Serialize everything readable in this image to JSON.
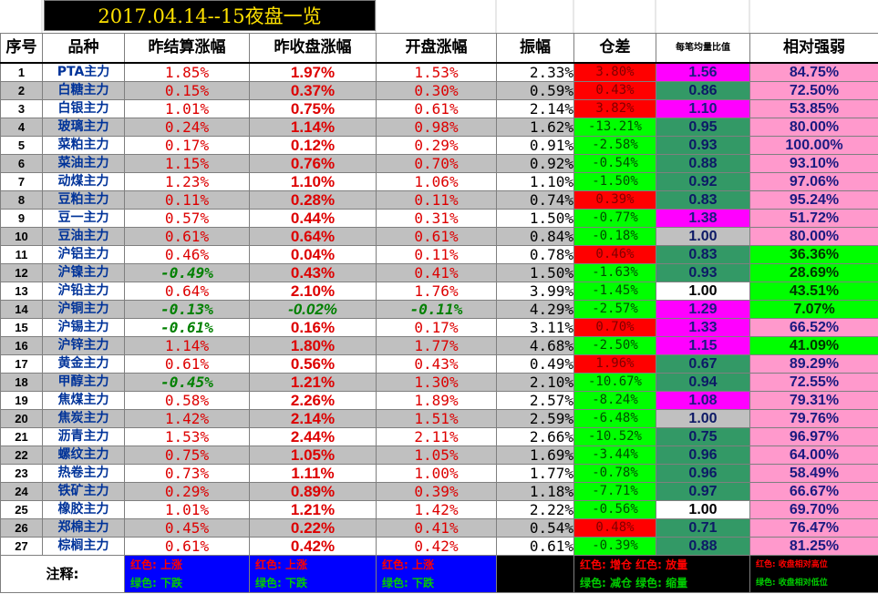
{
  "title": "2017.04.14--15夜盘一览",
  "headers": {
    "idx": "序号",
    "name": "品种",
    "settle_chg": "昨结算涨幅",
    "close_chg": "昨收盘涨幅",
    "open_chg": "开盘涨幅",
    "amplitude": "振幅",
    "oi_diff": "仓差",
    "avg_ratio": "每笔均量比值",
    "strength": "相对强弱"
  },
  "rows": [
    {
      "idx": "1",
      "name": "PTA主力",
      "settle": "1.85%",
      "close": "1.97%",
      "open": "1.53%",
      "amp": "2.33%",
      "diff": "3.80%",
      "diff_color": "red",
      "avg": "1.56",
      "avg_color": "mag",
      "str": "84.75%",
      "str_color": "pink"
    },
    {
      "idx": "2",
      "name": "白糖主力",
      "settle": "0.15%",
      "close": "0.37%",
      "open": "0.30%",
      "amp": "0.59%",
      "diff": "0.43%",
      "diff_color": "red",
      "avg": "0.86",
      "avg_color": "teal",
      "str": "72.50%",
      "str_color": "pink"
    },
    {
      "idx": "3",
      "name": "白银主力",
      "settle": "1.01%",
      "close": "0.75%",
      "open": "0.61%",
      "amp": "2.14%",
      "diff": "3.82%",
      "diff_color": "red",
      "avg": "1.10",
      "avg_color": "mag",
      "str": "53.85%",
      "str_color": "pink"
    },
    {
      "idx": "4",
      "name": "玻璃主力",
      "settle": "0.24%",
      "close": "1.14%",
      "open": "0.98%",
      "amp": "1.62%",
      "diff": "-13.21%",
      "diff_color": "grn",
      "avg": "0.95",
      "avg_color": "teal",
      "str": "80.00%",
      "str_color": "pink"
    },
    {
      "idx": "5",
      "name": "菜粕主力",
      "settle": "0.17%",
      "close": "0.12%",
      "open": "0.29%",
      "amp": "0.91%",
      "diff": "-2.58%",
      "diff_color": "grn",
      "avg": "0.93",
      "avg_color": "teal",
      "str": "100.00%",
      "str_color": "pink"
    },
    {
      "idx": "6",
      "name": "菜油主力",
      "settle": "1.15%",
      "close": "0.76%",
      "open": "0.70%",
      "amp": "0.92%",
      "diff": "-0.54%",
      "diff_color": "grn",
      "avg": "0.88",
      "avg_color": "teal",
      "str": "93.10%",
      "str_color": "pink"
    },
    {
      "idx": "7",
      "name": "动煤主力",
      "settle": "1.23%",
      "close": "1.10%",
      "open": "1.06%",
      "amp": "1.10%",
      "diff": "-1.50%",
      "diff_color": "grn",
      "avg": "0.92",
      "avg_color": "teal",
      "str": "97.06%",
      "str_color": "pink"
    },
    {
      "idx": "8",
      "name": "豆粕主力",
      "settle": "0.11%",
      "close": "0.28%",
      "open": "0.11%",
      "amp": "0.74%",
      "diff": "0.39%",
      "diff_color": "red",
      "avg": "0.83",
      "avg_color": "teal",
      "str": "95.24%",
      "str_color": "pink"
    },
    {
      "idx": "9",
      "name": "豆一主力",
      "settle": "0.57%",
      "close": "0.44%",
      "open": "0.31%",
      "amp": "1.50%",
      "diff": "-0.77%",
      "diff_color": "grn",
      "avg": "1.38",
      "avg_color": "mag",
      "str": "51.72%",
      "str_color": "pink"
    },
    {
      "idx": "10",
      "name": "豆油主力",
      "settle": "0.61%",
      "close": "0.64%",
      "open": "0.61%",
      "amp": "0.84%",
      "diff": "-0.18%",
      "diff_color": "grn",
      "avg": "1.00",
      "avg_color": "gray",
      "str": "80.00%",
      "str_color": "pink"
    },
    {
      "idx": "11",
      "name": "沪铝主力",
      "settle": "0.46%",
      "close": "0.04%",
      "open": "0.11%",
      "amp": "0.78%",
      "diff": "0.46%",
      "diff_color": "red",
      "avg": "0.83",
      "avg_color": "teal",
      "str": "36.36%",
      "str_color": "lime"
    },
    {
      "idx": "12",
      "name": "沪镍主力",
      "settle": "-0.49%",
      "close": "0.43%",
      "open": "0.41%",
      "amp": "1.50%",
      "diff": "-1.63%",
      "diff_color": "grn",
      "avg": "0.93",
      "avg_color": "teal",
      "str": "28.69%",
      "str_color": "lime"
    },
    {
      "idx": "13",
      "name": "沪铅主力",
      "settle": "0.64%",
      "close": "2.10%",
      "open": "1.76%",
      "amp": "3.99%",
      "diff": "-1.45%",
      "diff_color": "grn",
      "avg": "1.00",
      "avg_color": "white",
      "str": "43.51%",
      "str_color": "lime"
    },
    {
      "idx": "14",
      "name": "沪铜主力",
      "settle": "-0.13%",
      "close": "-0.02%",
      "open": "-0.11%",
      "amp": "4.29%",
      "diff": "-2.57%",
      "diff_color": "grn",
      "avg": "1.29",
      "avg_color": "mag",
      "str": "7.07%",
      "str_color": "lime"
    },
    {
      "idx": "15",
      "name": "沪锡主力",
      "settle": "-0.61%",
      "close": "0.16%",
      "open": "0.17%",
      "amp": "3.11%",
      "diff": "0.70%",
      "diff_color": "red",
      "avg": "1.33",
      "avg_color": "mag",
      "str": "66.52%",
      "str_color": "pink"
    },
    {
      "idx": "16",
      "name": "沪锌主力",
      "settle": "1.14%",
      "close": "1.80%",
      "open": "1.77%",
      "amp": "4.68%",
      "diff": "-2.50%",
      "diff_color": "grn",
      "avg": "1.15",
      "avg_color": "mag",
      "str": "41.09%",
      "str_color": "lime"
    },
    {
      "idx": "17",
      "name": "黄金主力",
      "settle": "0.61%",
      "close": "0.56%",
      "open": "0.43%",
      "amp": "0.49%",
      "diff": "1.96%",
      "diff_color": "red",
      "avg": "0.67",
      "avg_color": "teal",
      "str": "89.29%",
      "str_color": "pink"
    },
    {
      "idx": "18",
      "name": "甲醇主力",
      "settle": "-0.45%",
      "close": "1.21%",
      "open": "1.30%",
      "amp": "2.10%",
      "diff": "-10.67%",
      "diff_color": "grn",
      "avg": "0.94",
      "avg_color": "teal",
      "str": "72.55%",
      "str_color": "pink"
    },
    {
      "idx": "19",
      "name": "焦煤主力",
      "settle": "0.58%",
      "close": "2.26%",
      "open": "1.89%",
      "amp": "2.57%",
      "diff": "-8.24%",
      "diff_color": "grn",
      "avg": "1.08",
      "avg_color": "mag",
      "str": "79.31%",
      "str_color": "pink"
    },
    {
      "idx": "20",
      "name": "焦炭主力",
      "settle": "1.42%",
      "close": "2.14%",
      "open": "1.51%",
      "amp": "2.59%",
      "diff": "-6.48%",
      "diff_color": "grn",
      "avg": "1.00",
      "avg_color": "gray",
      "str": "79.76%",
      "str_color": "pink"
    },
    {
      "idx": "21",
      "name": "沥青主力",
      "settle": "1.53%",
      "close": "2.44%",
      "open": "2.11%",
      "amp": "2.66%",
      "diff": "-10.52%",
      "diff_color": "grn",
      "avg": "0.75",
      "avg_color": "teal",
      "str": "96.97%",
      "str_color": "pink"
    },
    {
      "idx": "22",
      "name": "螺纹主力",
      "settle": "0.75%",
      "close": "1.05%",
      "open": "1.05%",
      "amp": "1.69%",
      "diff": "-3.44%",
      "diff_color": "grn",
      "avg": "0.96",
      "avg_color": "teal",
      "str": "64.00%",
      "str_color": "pink"
    },
    {
      "idx": "23",
      "name": "热卷主力",
      "settle": "0.73%",
      "close": "1.11%",
      "open": "1.00%",
      "amp": "1.77%",
      "diff": "-0.78%",
      "diff_color": "grn",
      "avg": "0.96",
      "avg_color": "teal",
      "str": "58.49%",
      "str_color": "pink"
    },
    {
      "idx": "24",
      "name": "铁矿主力",
      "settle": "0.29%",
      "close": "0.89%",
      "open": "0.39%",
      "amp": "1.18%",
      "diff": "-7.71%",
      "diff_color": "grn",
      "avg": "0.97",
      "avg_color": "teal",
      "str": "66.67%",
      "str_color": "pink"
    },
    {
      "idx": "25",
      "name": "橡胶主力",
      "settle": "1.01%",
      "close": "1.21%",
      "open": "1.42%",
      "amp": "2.22%",
      "diff": "-0.56%",
      "diff_color": "grn",
      "avg": "1.00",
      "avg_color": "white",
      "str": "69.70%",
      "str_color": "pink"
    },
    {
      "idx": "26",
      "name": "郑棉主力",
      "settle": "0.45%",
      "close": "0.22%",
      "open": "0.41%",
      "amp": "0.54%",
      "diff": "0.48%",
      "diff_color": "red",
      "avg": "0.71",
      "avg_color": "teal",
      "str": "76.47%",
      "str_color": "pink"
    },
    {
      "idx": "27",
      "name": "棕榈主力",
      "settle": "0.61%",
      "close": "0.42%",
      "open": "0.42%",
      "amp": "0.61%",
      "diff": "-0.39%",
      "diff_color": "grn",
      "avg": "0.88",
      "avg_color": "teal",
      "str": "81.25%",
      "str_color": "pink"
    }
  ],
  "notes": {
    "label": "注释:",
    "settle": {
      "up": "红色: 上涨",
      "down": "绿色: 下跌"
    },
    "close": {
      "up": "红色: 上涨",
      "down": "绿色: 下跌"
    },
    "open": {
      "up": "红色: 上涨",
      "down": "绿色: 下跌"
    },
    "diff_avg": {
      "up": "红色: 增仓 红色: 放量",
      "down": "绿色: 减仓 绿色: 缩量"
    },
    "strength": {
      "up": "红色: 收盘相对高位",
      "down": "绿色: 收盘相对低位"
    }
  }
}
